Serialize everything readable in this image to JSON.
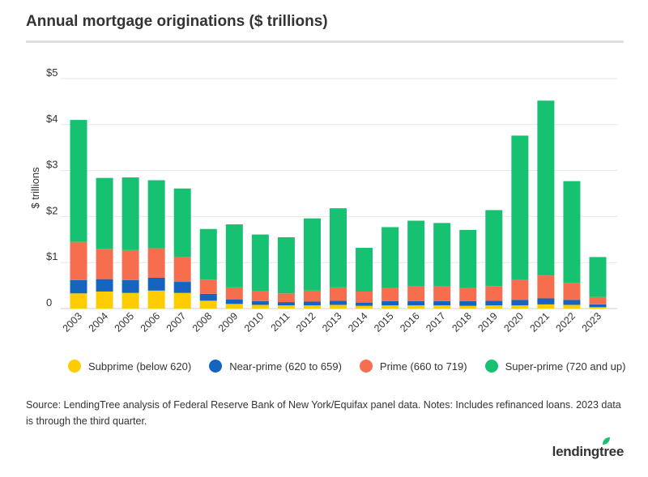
{
  "title": "Annual mortgage originations ($ trillions)",
  "source": "Source: LendingTree analysis of Federal Reserve Bank of New York/Equifax panel data. Notes: Includes refinanced loans. 2023 data is through the third quarter.",
  "logo": "lendingtree",
  "colors": {
    "subprime": "#ffcc00",
    "near_prime": "#1565c0",
    "prime": "#f76e4f",
    "super_prime": "#16c172",
    "grid": "#e6e6e6",
    "text": "#333333"
  },
  "legend": [
    {
      "label": "Subprime (below 620)",
      "color": "#ffcc00"
    },
    {
      "label": "Near-prime (620 to 659)",
      "color": "#1565c0"
    },
    {
      "label": "Prime (660 to 719)",
      "color": "#f76e4f"
    },
    {
      "label": "Super-prime (720 and up)",
      "color": "#16c172"
    }
  ],
  "chart_data": {
    "type": "bar",
    "stacked": true,
    "title": "Annual mortgage originations ($ trillions)",
    "ylabel": "$ trillions",
    "ylim": [
      0,
      5
    ],
    "yticks": [
      0,
      1,
      2,
      3,
      4,
      5
    ],
    "ytick_labels": [
      "0",
      "$1",
      "$2",
      "$3",
      "$4",
      "$5"
    ],
    "grid": true,
    "legend_position": "bottom",
    "categories": [
      "2003",
      "2004",
      "2005",
      "2006",
      "2007",
      "2008",
      "2009",
      "2010",
      "2011",
      "2012",
      "2013",
      "2014",
      "2015",
      "2016",
      "2017",
      "2018",
      "2019",
      "2020",
      "2021",
      "2022",
      "2023"
    ],
    "series": [
      {
        "name": "Subprime (below 620)",
        "color": "#ffcc00",
        "values": [
          0.33,
          0.37,
          0.34,
          0.39,
          0.34,
          0.17,
          0.1,
          0.08,
          0.07,
          0.07,
          0.08,
          0.06,
          0.07,
          0.07,
          0.07,
          0.06,
          0.07,
          0.07,
          0.09,
          0.08,
          0.03
        ]
      },
      {
        "name": "Near-prime (620 to 659)",
        "color": "#1565c0",
        "values": [
          0.29,
          0.27,
          0.28,
          0.28,
          0.24,
          0.15,
          0.1,
          0.08,
          0.07,
          0.08,
          0.09,
          0.07,
          0.09,
          0.09,
          0.09,
          0.1,
          0.1,
          0.12,
          0.13,
          0.11,
          0.06
        ]
      },
      {
        "name": "Prime (660 to 719)",
        "color": "#f76e4f",
        "values": [
          0.83,
          0.66,
          0.65,
          0.64,
          0.54,
          0.31,
          0.26,
          0.22,
          0.19,
          0.24,
          0.29,
          0.24,
          0.29,
          0.32,
          0.32,
          0.29,
          0.32,
          0.43,
          0.5,
          0.37,
          0.16
        ]
      },
      {
        "name": "Super-prime (720 and up)",
        "color": "#16c172",
        "values": [
          2.65,
          1.54,
          1.58,
          1.48,
          1.49,
          1.1,
          1.37,
          1.23,
          1.22,
          1.57,
          1.72,
          0.95,
          1.32,
          1.43,
          1.38,
          1.26,
          1.65,
          3.14,
          3.8,
          2.21,
          0.87
        ]
      }
    ]
  }
}
